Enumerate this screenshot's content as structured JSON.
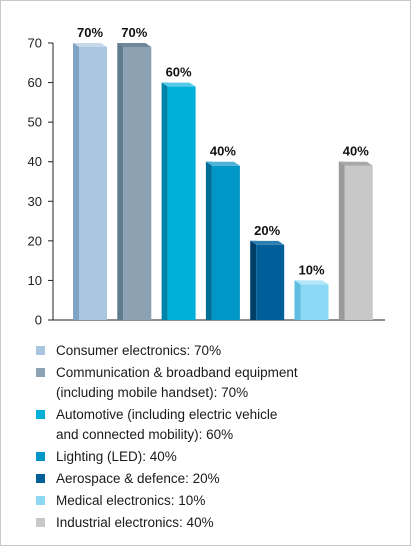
{
  "chart_data": {
    "type": "bar",
    "categories": [
      "Consumer electronics",
      "Communication & broadband equipment (including mobile handset)",
      "Automotive (including electric vehicle and connected mobility)",
      "Lighting (LED)",
      "Aerospace & defence",
      "Medical electronics",
      "Industrial electronics"
    ],
    "values": [
      70,
      70,
      60,
      40,
      20,
      10,
      40
    ],
    "data_labels": [
      "70%",
      "70%",
      "60%",
      "40%",
      "20%",
      "10%",
      "40%"
    ],
    "ylim": [
      0,
      70
    ],
    "yticks": [
      0,
      10,
      20,
      30,
      40,
      50,
      60,
      70
    ],
    "ytick_labels": [
      "0",
      "10",
      "20",
      "30",
      "40",
      "50",
      "60",
      "70"
    ],
    "grid": false,
    "legend_position": "bottom",
    "colors": [
      "#a9c5df",
      "#8ca2b3",
      "#00b0d8",
      "#0096c8",
      "#005f99",
      "#8dd9f5",
      "#c8c8c8"
    ],
    "side_colors": [
      "#7fa3c2",
      "#5f7b8e",
      "#0083a8",
      "#006f97",
      "#003e6a",
      "#5fbde2",
      "#9a9a9a"
    ],
    "top_colors": [
      "#c6d9ea",
      "#6e8799",
      "#55c9e6",
      "#4fb3d8",
      "#2d7fb0",
      "#b2e7f9",
      "#a8a8a8"
    ]
  },
  "legend": {
    "items": [
      {
        "label": "Consumer electronics: 70%"
      },
      {
        "label": "Communication & broadband equipment\n(including mobile handset): 70%"
      },
      {
        "label": "Automotive (including electric vehicle\nand connected mobility): 60%"
      },
      {
        "label": "Lighting (LED): 40%"
      },
      {
        "label": "Aerospace & defence: 20%"
      },
      {
        "label": "Medical electronics: 10%"
      },
      {
        "label": "Industrial electronics: 40%"
      }
    ]
  }
}
